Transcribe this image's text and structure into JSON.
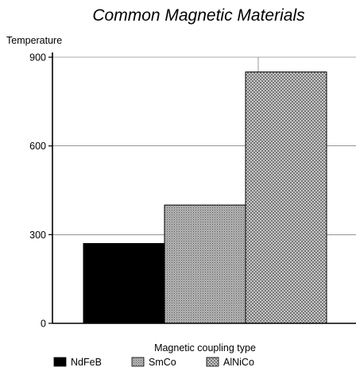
{
  "chart_data": {
    "type": "bar",
    "title": "Common Magnetic Materials",
    "ylabel": "Temperature",
    "xlabel": "Magnetic coupling type",
    "ylim": [
      0,
      900
    ],
    "yticks": [
      0,
      300,
      600,
      900
    ],
    "grid": true,
    "legend_position": "bottom",
    "series": [
      {
        "name": "NdFeB",
        "values": [
          270
        ],
        "color": "#000000",
        "pattern": "solid"
      },
      {
        "name": "SmCo",
        "values": [
          400
        ],
        "color": "#a6a6a6",
        "pattern": "fine-dots"
      },
      {
        "name": "AlNiCo",
        "values": [
          850
        ],
        "color": "#d0d0d0",
        "pattern": "crosshatch"
      }
    ]
  }
}
